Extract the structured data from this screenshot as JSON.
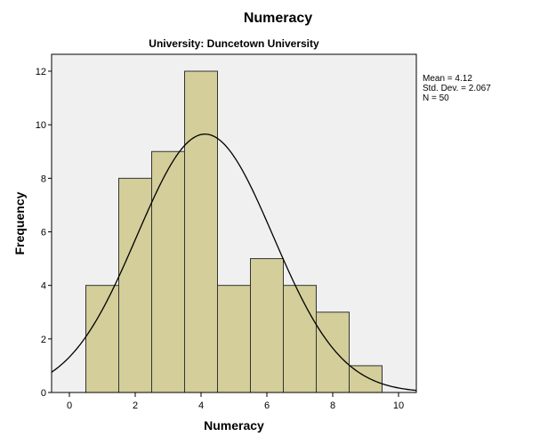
{
  "chart_data": {
    "type": "bar",
    "subtype": "histogram",
    "title": "Numeracy",
    "subtitle": "University: Duncetown University",
    "xlabel": "Numeracy",
    "ylabel": "Frequency",
    "bins": [
      {
        "from": 0.5,
        "to": 1.5,
        "count": 4
      },
      {
        "from": 1.5,
        "to": 2.5,
        "count": 8
      },
      {
        "from": 2.5,
        "to": 3.5,
        "count": 9
      },
      {
        "from": 3.5,
        "to": 4.5,
        "count": 12
      },
      {
        "from": 4.5,
        "to": 5.5,
        "count": 4
      },
      {
        "from": 5.5,
        "to": 6.5,
        "count": 5
      },
      {
        "from": 6.5,
        "to": 7.5,
        "count": 4
      },
      {
        "from": 7.5,
        "to": 8.5,
        "count": 3
      },
      {
        "from": 8.5,
        "to": 9.5,
        "count": 1
      }
    ],
    "categories": [
      "1",
      "2",
      "3",
      "4",
      "5",
      "6",
      "7",
      "8",
      "9"
    ],
    "values": [
      4,
      8,
      9,
      12,
      4,
      5,
      4,
      3,
      1
    ],
    "xlim": [
      -0.55,
      10.55
    ],
    "ylim": [
      0,
      12.6
    ],
    "xticks": [
      0,
      2,
      4,
      6,
      8,
      10
    ],
    "yticks": [
      0,
      2,
      4,
      6,
      8,
      10,
      12
    ],
    "normal_curve": {
      "mean": 4.12,
      "std_dev": 2.067,
      "n": 50,
      "bin_width": 1
    },
    "legend": {
      "position": "right",
      "entries": [
        "Mean = 4.12",
        "Std. Dev. = 2.067",
        "N = 50"
      ]
    },
    "grid": false,
    "colors": {
      "bar_fill": "#d3ce9a",
      "bar_stroke": "#333333",
      "plot_background": "#f0f0f0",
      "curve": "#000000",
      "axis": "#000000"
    }
  },
  "text": {
    "title": "Numeracy",
    "subtitle": "University: Duncetown University",
    "xlabel": "Numeracy",
    "ylabel": "Frequency",
    "stats": {
      "mean": "Mean = 4.12",
      "std_dev": "Std. Dev. = 2.067",
      "n": "N = 50"
    }
  }
}
